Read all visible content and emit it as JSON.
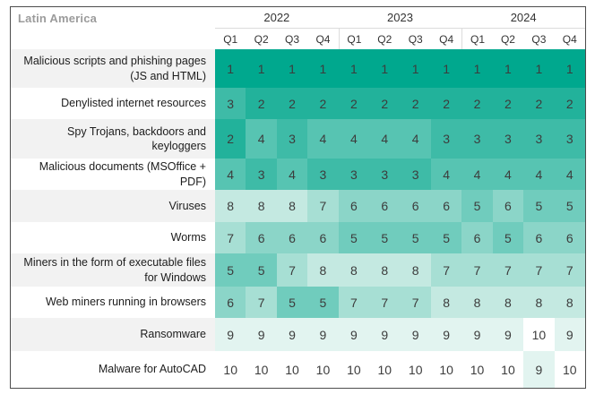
{
  "chart_data": {
    "type": "heatmap",
    "title": "Latin America",
    "years": [
      "2022",
      "2023",
      "2024"
    ],
    "quarters": [
      "Q1",
      "Q2",
      "Q3",
      "Q4"
    ],
    "columns": [
      "2022 Q1",
      "2022 Q2",
      "2022 Q3",
      "2022 Q4",
      "2023 Q1",
      "2023 Q2",
      "2023 Q3",
      "2023 Q4",
      "2024 Q1",
      "2024 Q2",
      "2024 Q3",
      "2024 Q4"
    ],
    "rows": [
      {
        "label": "Malicious scripts and phishing pages (JS and HTML)",
        "values": [
          1,
          1,
          1,
          1,
          1,
          1,
          1,
          1,
          1,
          1,
          1,
          1
        ]
      },
      {
        "label": "Denylisted internet resources",
        "values": [
          3,
          2,
          2,
          2,
          2,
          2,
          2,
          2,
          2,
          2,
          2,
          2
        ]
      },
      {
        "label": "Spy Trojans, backdoors and keyloggers",
        "values": [
          2,
          4,
          3,
          4,
          4,
          4,
          4,
          3,
          3,
          3,
          3,
          3
        ]
      },
      {
        "label": "Malicious documents (MSOffice + PDF)",
        "values": [
          4,
          3,
          4,
          3,
          3,
          3,
          3,
          4,
          4,
          4,
          4,
          4
        ]
      },
      {
        "label": "Viruses",
        "values": [
          8,
          8,
          8,
          7,
          6,
          6,
          6,
          6,
          5,
          6,
          5,
          5
        ]
      },
      {
        "label": "Worms",
        "values": [
          7,
          6,
          6,
          6,
          5,
          5,
          5,
          5,
          6,
          5,
          6,
          6
        ]
      },
      {
        "label": "Miners in the form of executable files for Windows",
        "values": [
          5,
          5,
          7,
          8,
          8,
          8,
          8,
          7,
          7,
          7,
          7,
          7
        ]
      },
      {
        "label": "Web miners running in browsers",
        "values": [
          6,
          7,
          5,
          5,
          7,
          7,
          7,
          8,
          8,
          8,
          8,
          8
        ]
      },
      {
        "label": "Ransomware",
        "values": [
          9,
          9,
          9,
          9,
          9,
          9,
          9,
          9,
          9,
          9,
          10,
          9
        ]
      },
      {
        "label": "Malware for AutoCAD",
        "values": [
          10,
          10,
          10,
          10,
          10,
          10,
          10,
          10,
          10,
          10,
          9,
          10
        ]
      }
    ],
    "rank_colors": [
      "#00a88e",
      "#22b29b",
      "#3ebba7",
      "#57c4b2",
      "#70ccbd",
      "#8bd5c8",
      "#a7dfd4",
      "#c4e9e1",
      "#e2f4f0",
      "#ffffff"
    ],
    "accent_color": "#00a88e"
  }
}
